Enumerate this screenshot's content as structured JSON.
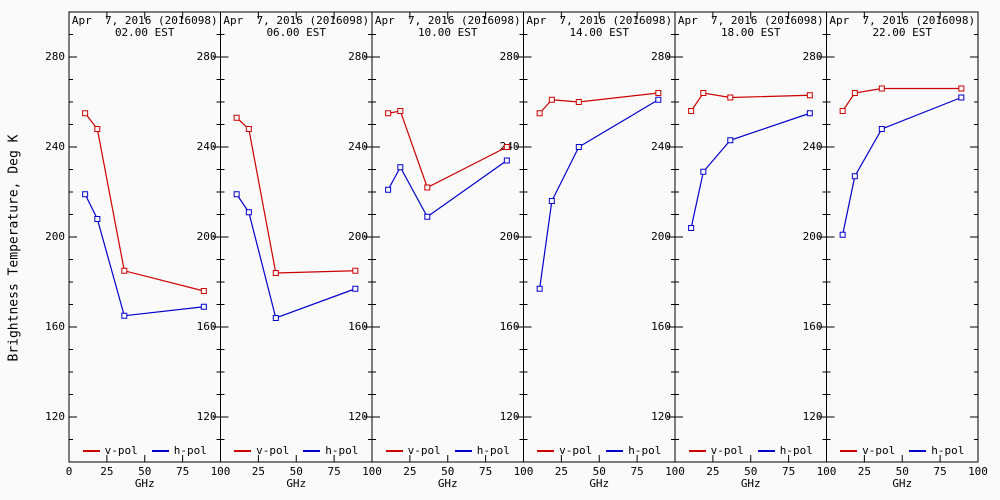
{
  "chart_data": {
    "type": "line",
    "ylabel": "Brightness Temperature, Deg K",
    "xlabel": "GHz",
    "x_ticks": [
      0,
      25,
      50,
      75,
      100
    ],
    "y_ticks": [
      280,
      240,
      200,
      160,
      120
    ],
    "xlim": [
      0,
      100
    ],
    "ylim": [
      100,
      300
    ],
    "x": [
      10.65,
      18.7,
      36.5,
      89.0
    ],
    "legend": [
      {
        "name": "v-pol",
        "color": "#cc0000"
      },
      {
        "name": "h-pol",
        "color": "#0000cc"
      }
    ],
    "legend_position": "bottom-inside-each-panel",
    "grid": false,
    "panels": [
      {
        "date_label": "Apr  7, 2016 (2016098)",
        "time_label": "02.00 EST",
        "series": [
          {
            "name": "v-pol",
            "values": [
              255,
              248,
              185,
              176
            ]
          },
          {
            "name": "h-pol",
            "values": [
              219,
              208,
              165,
              169
            ]
          }
        ]
      },
      {
        "date_label": "Apr  7, 2016 (2016098)",
        "time_label": "06.00 EST",
        "series": [
          {
            "name": "v-pol",
            "values": [
              253,
              248,
              184,
              185
            ]
          },
          {
            "name": "h-pol",
            "values": [
              219,
              211,
              164,
              177
            ]
          }
        ]
      },
      {
        "date_label": "Apr  7, 2016 (2016098)",
        "time_label": "10.00 EST",
        "series": [
          {
            "name": "v-pol",
            "values": [
              255,
              256,
              222,
              240
            ]
          },
          {
            "name": "h-pol",
            "values": [
              221,
              231,
              209,
              234
            ]
          }
        ]
      },
      {
        "date_label": "Apr  7, 2016 (2016098)",
        "time_label": "14.00 EST",
        "series": [
          {
            "name": "v-pol",
            "values": [
              255,
              261,
              260,
              264
            ]
          },
          {
            "name": "h-pol",
            "values": [
              177,
              216,
              240,
              261
            ]
          }
        ]
      },
      {
        "date_label": "Apr  7, 2016 (2016098)",
        "time_label": "18.00 EST",
        "series": [
          {
            "name": "v-pol",
            "values": [
              256,
              264,
              262,
              263
            ]
          },
          {
            "name": "h-pol",
            "values": [
              204,
              229,
              243,
              255
            ]
          }
        ]
      },
      {
        "date_label": "Apr  7, 2016 (2016098)",
        "time_label": "22.00 EST",
        "series": [
          {
            "name": "v-pol",
            "values": [
              256,
              264,
              266,
              266
            ]
          },
          {
            "name": "h-pol",
            "values": [
              201,
              227,
              248,
              262
            ]
          }
        ]
      }
    ],
    "colors": {
      "frame": "#000000",
      "background": "#fafafa",
      "vpol": "#cc0000",
      "hpol": "#0000cc"
    }
  }
}
